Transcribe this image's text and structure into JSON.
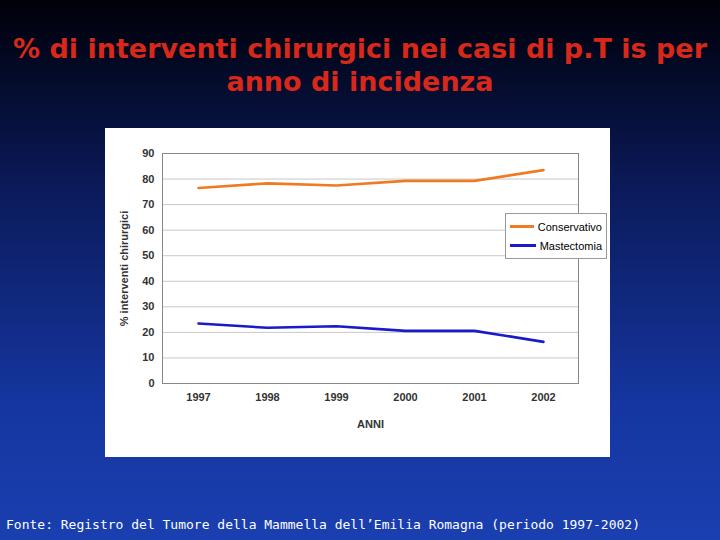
{
  "chart_data": {
    "type": "line",
    "title": "% di interventi chirurgici nei casi di p.T is per anno di incidenza",
    "caption": "Fonte: Registro del Tumore della Mammella dell’Emilia Romagna (periodo 1997-2002)",
    "x_label": "ANNI",
    "y_label": "% interventi chirurgici",
    "categories": [
      "1997",
      "1998",
      "1999",
      "2000",
      "2001",
      "2002"
    ],
    "series": [
      {
        "name": "Conservativo",
        "color": "#f07a22",
        "values": [
          76.5,
          78.3,
          77.5,
          79.3,
          79.3,
          83.5
        ]
      },
      {
        "name": "Mastectomia",
        "color": "#1a1ac8",
        "values": [
          23.5,
          21.8,
          22.4,
          20.6,
          20.6,
          16.3
        ]
      }
    ],
    "ylim": [
      0,
      90
    ],
    "yticks": [
      0,
      10,
      20,
      30,
      40,
      50,
      60,
      70,
      80,
      90
    ],
    "grid": true,
    "legend": "right"
  }
}
